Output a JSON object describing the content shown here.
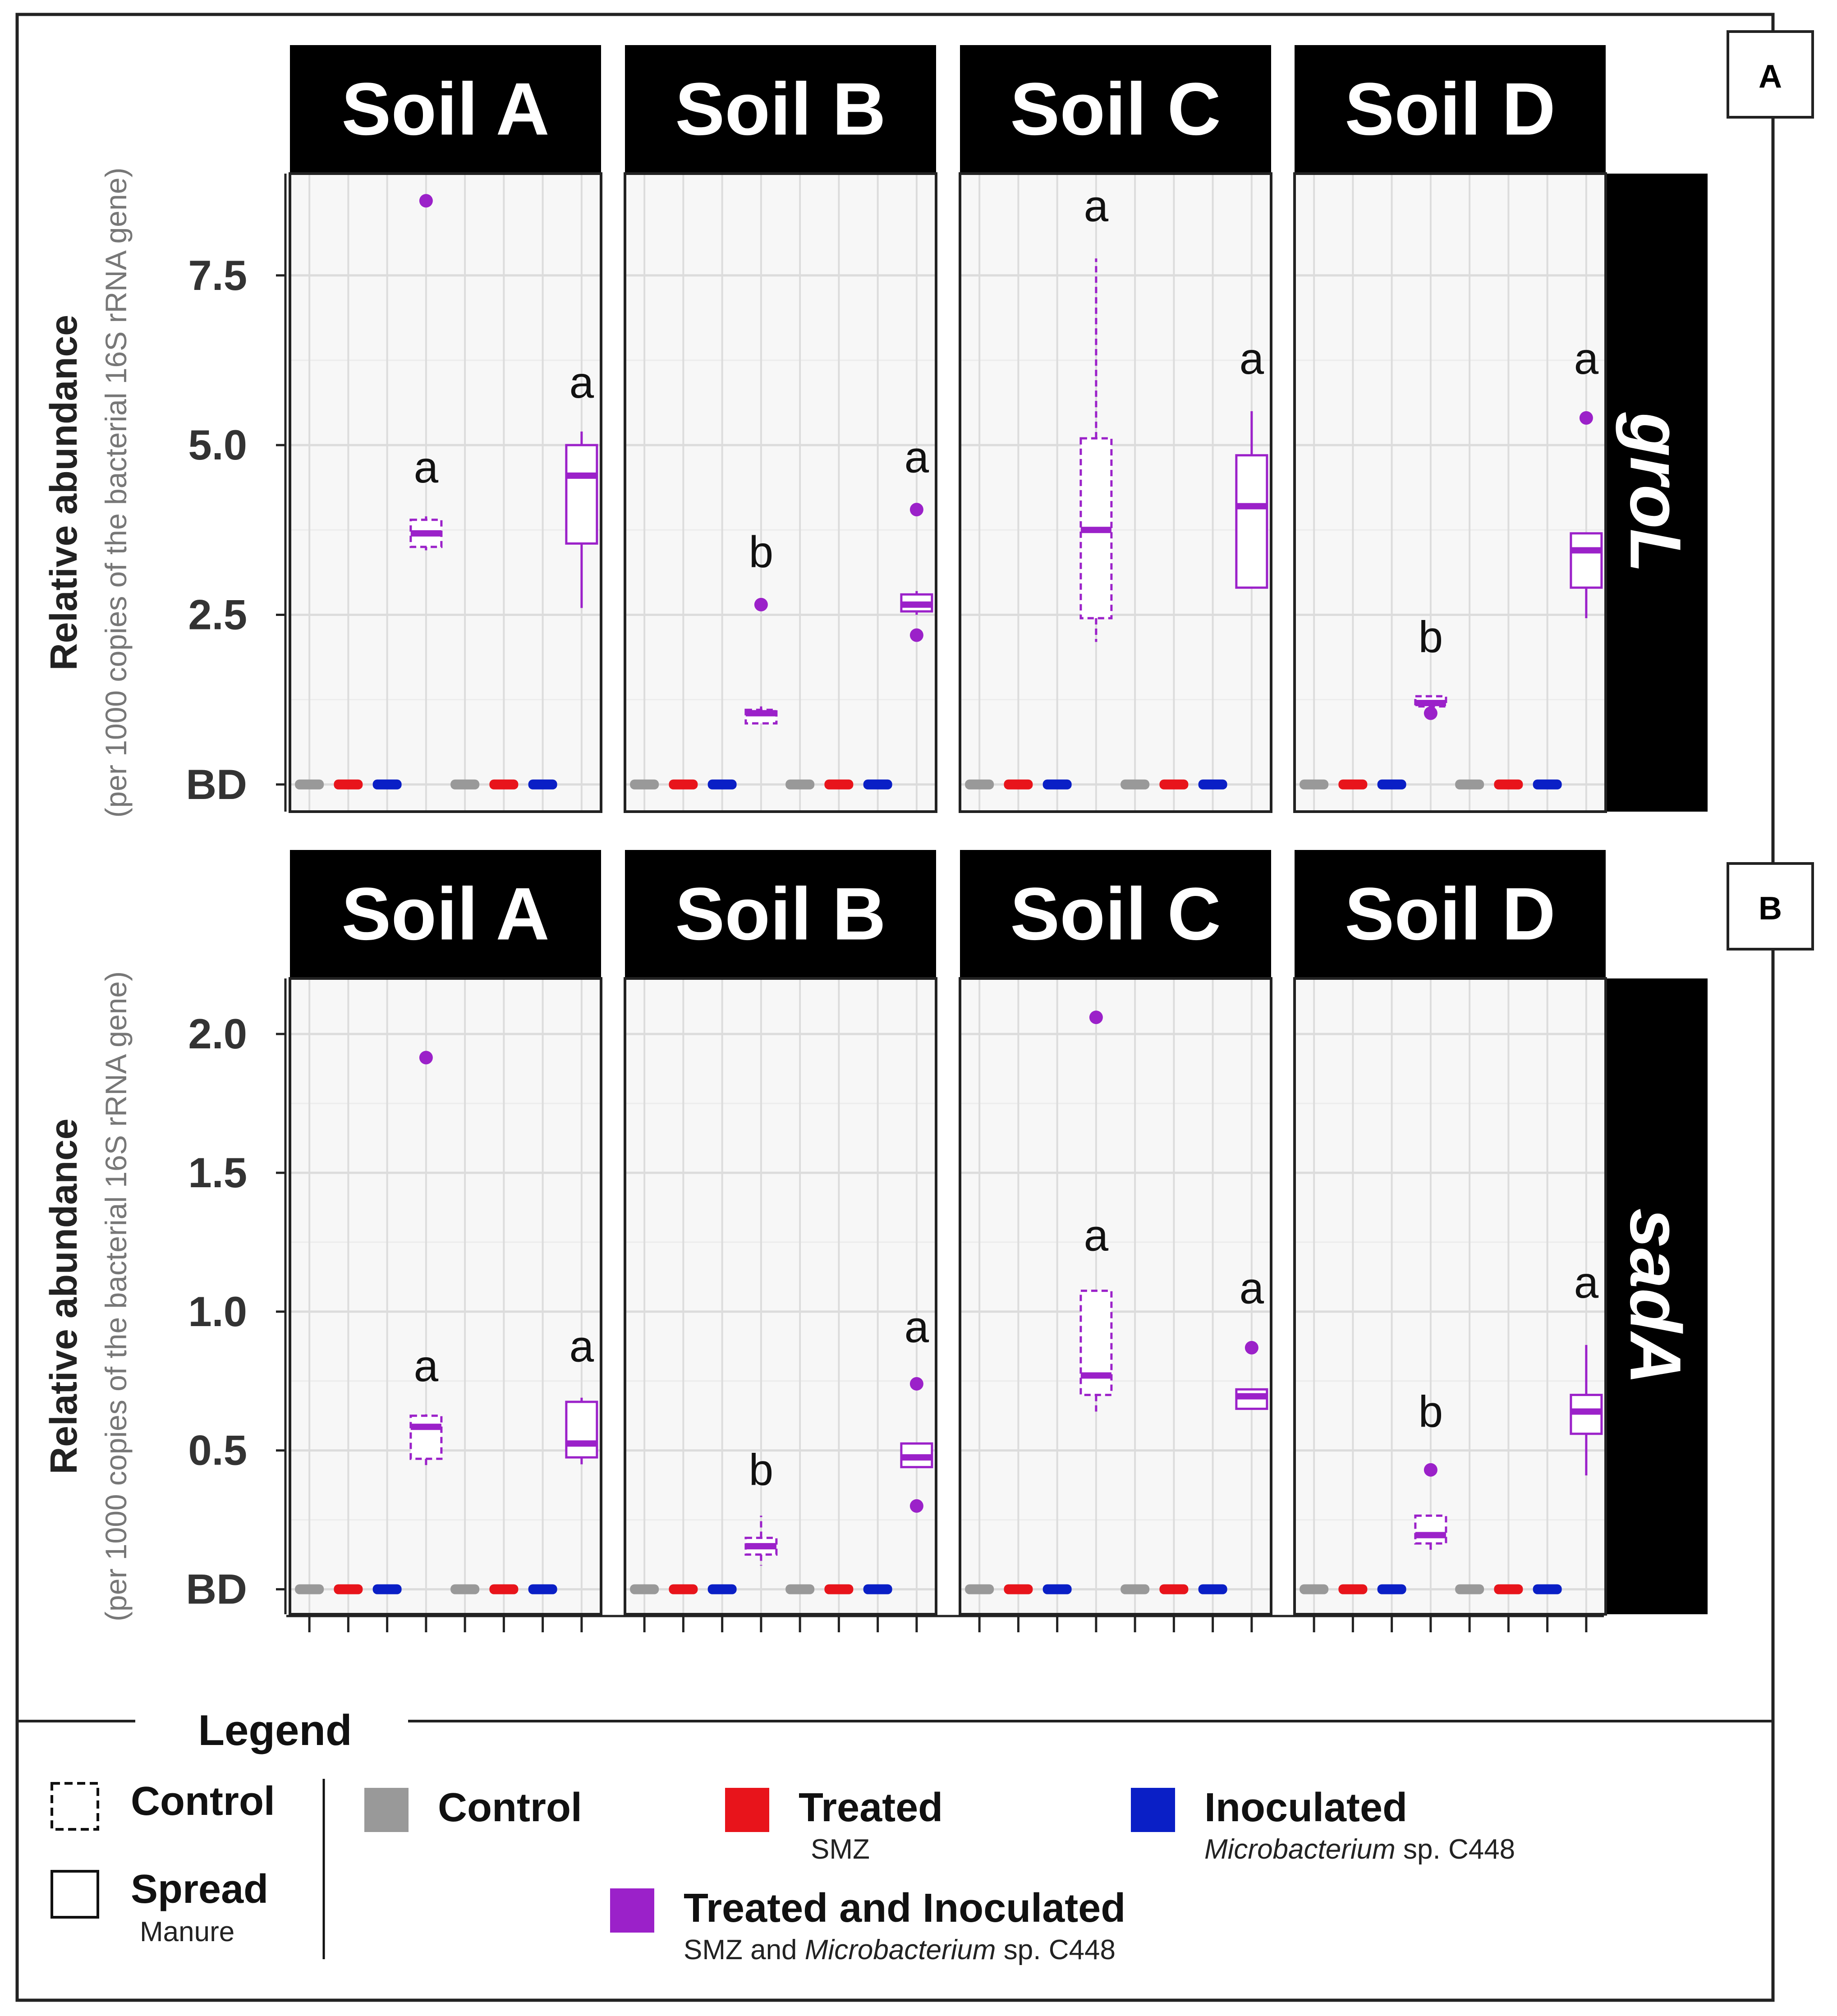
{
  "colors": {
    "control": "#999999",
    "treated": "#e8141b",
    "inoculated": "#0a1fc6",
    "treated_inoculated": "#9b21c9",
    "strip": "#000000",
    "panel_bg": "#f7f7f7",
    "grid": "#dcdcdc"
  },
  "chart_data": [
    {
      "type": "box",
      "panel_label": "A",
      "gene": "groL",
      "facets": [
        "Soil A",
        "Soil B",
        "Soil C",
        "Soil D"
      ],
      "ylabel": "Relative abundance",
      "ylabel_sub": "(per 1000 copies of the bacterial 16S rRNA gene)",
      "yticks": [
        {
          "value": 0,
          "label": "BD"
        },
        {
          "value": 2.5,
          "label": "2.5"
        },
        {
          "value": 5.0,
          "label": "5.0"
        },
        {
          "value": 7.5,
          "label": "7.5"
        }
      ],
      "ylim": [
        -0.4,
        9.0
      ],
      "groups": [
        "Control",
        "Treated",
        "Inoculated",
        "Treated and Inoculated",
        "Control",
        "Treated",
        "Inoculated",
        "Treated and Inoculated"
      ],
      "manure": [
        "Control",
        "Control",
        "Control",
        "Control",
        "Spread",
        "Spread",
        "Spread",
        "Spread"
      ],
      "boxes": [
        [
          {
            "pos": 4,
            "manure": "Control",
            "q1": 3.5,
            "median": 3.7,
            "q3": 3.9,
            "whisker_low": 3.45,
            "whisker_high": 3.95,
            "outliers": [
              8.6
            ],
            "letter": "a",
            "letter_y": 4.45
          },
          {
            "pos": 8,
            "manure": "Spread",
            "q1": 3.55,
            "median": 4.55,
            "q3": 5.0,
            "whisker_low": 2.6,
            "whisker_high": 5.2,
            "outliers": [],
            "letter": "a",
            "letter_y": 5.7
          }
        ],
        [
          {
            "pos": 4,
            "manure": "Control",
            "q1": 0.9,
            "median": 1.05,
            "q3": 1.1,
            "whisker_low": 0.9,
            "whisker_high": 1.15,
            "outliers": [
              2.65
            ],
            "letter": "b",
            "letter_y": 3.2
          },
          {
            "pos": 8,
            "manure": "Spread",
            "q1": 2.55,
            "median": 2.65,
            "q3": 2.8,
            "whisker_low": 2.5,
            "whisker_high": 2.85,
            "outliers": [
              4.05,
              2.2
            ],
            "letter": "a",
            "letter_y": 4.6
          }
        ],
        [
          {
            "pos": 4,
            "manure": "Control",
            "q1": 2.45,
            "median": 3.75,
            "q3": 5.1,
            "whisker_low": 2.1,
            "whisker_high": 7.75,
            "outliers": [],
            "letter": "a",
            "letter_y": 8.3
          },
          {
            "pos": 8,
            "manure": "Spread",
            "q1": 2.9,
            "median": 4.1,
            "q3": 4.85,
            "whisker_low": 2.9,
            "whisker_high": 5.5,
            "outliers": [],
            "letter": "a",
            "letter_y": 6.05
          }
        ],
        [
          {
            "pos": 4,
            "manure": "Control",
            "q1": 1.15,
            "median": 1.2,
            "q3": 1.3,
            "whisker_low": 1.1,
            "whisker_high": 1.3,
            "outliers": [
              1.05
            ],
            "letter": "b",
            "letter_y": 1.95
          },
          {
            "pos": 8,
            "manure": "Spread",
            "q1": 2.9,
            "median": 3.45,
            "q3": 3.7,
            "whisker_low": 2.45,
            "whisker_high": 3.7,
            "outliers": [
              5.4
            ],
            "letter": "a",
            "letter_y": 6.05
          }
        ]
      ]
    },
    {
      "type": "box",
      "panel_label": "B",
      "gene": "sadA",
      "facets": [
        "Soil A",
        "Soil B",
        "Soil C",
        "Soil D"
      ],
      "ylabel": "Relative abundance",
      "ylabel_sub": "(per 1000 copies of the bacterial 16S rRNA gene)",
      "yticks": [
        {
          "value": 0,
          "label": "BD"
        },
        {
          "value": 0.5,
          "label": "0.5"
        },
        {
          "value": 1.0,
          "label": "1.0"
        },
        {
          "value": 1.5,
          "label": "1.5"
        },
        {
          "value": 2.0,
          "label": "2.0"
        }
      ],
      "ylim": [
        -0.09,
        2.2
      ],
      "groups": [
        "Control",
        "Treated",
        "Inoculated",
        "Treated and Inoculated",
        "Control",
        "Treated",
        "Inoculated",
        "Treated and Inoculated"
      ],
      "manure": [
        "Control",
        "Control",
        "Control",
        "Control",
        "Spread",
        "Spread",
        "Spread",
        "Spread"
      ],
      "boxes": [
        [
          {
            "pos": 4,
            "manure": "Control",
            "q1": 0.47,
            "median": 0.585,
            "q3": 0.625,
            "whisker_low": 0.44,
            "whisker_high": 0.63,
            "outliers": [
              1.915
            ],
            "letter": "a",
            "letter_y": 0.75
          },
          {
            "pos": 8,
            "manure": "Spread",
            "q1": 0.475,
            "median": 0.525,
            "q3": 0.675,
            "whisker_low": 0.45,
            "whisker_high": 0.69,
            "outliers": [],
            "letter": "a",
            "letter_y": 0.82
          }
        ],
        [
          {
            "pos": 4,
            "manure": "Control",
            "q1": 0.125,
            "median": 0.155,
            "q3": 0.185,
            "whisker_low": 0.085,
            "whisker_high": 0.265,
            "outliers": [],
            "letter": "b",
            "letter_y": 0.375
          },
          {
            "pos": 8,
            "manure": "Spread",
            "q1": 0.44,
            "median": 0.475,
            "q3": 0.525,
            "whisker_low": 0.44,
            "whisker_high": 0.525,
            "outliers": [
              0.74,
              0.3
            ],
            "letter": "a",
            "letter_y": 0.89
          }
        ],
        [
          {
            "pos": 4,
            "manure": "Control",
            "q1": 0.7,
            "median": 0.77,
            "q3": 1.075,
            "whisker_low": 0.64,
            "whisker_high": 1.075,
            "outliers": [
              2.06
            ],
            "letter": "a",
            "letter_y": 1.22
          },
          {
            "pos": 8,
            "manure": "Spread",
            "q1": 0.65,
            "median": 0.695,
            "q3": 0.72,
            "whisker_low": 0.65,
            "whisker_high": 0.72,
            "outliers": [
              0.87
            ],
            "letter": "a",
            "letter_y": 1.03
          }
        ],
        [
          {
            "pos": 4,
            "manure": "Control",
            "q1": 0.165,
            "median": 0.195,
            "q3": 0.265,
            "whisker_low": 0.14,
            "whisker_high": 0.265,
            "outliers": [
              0.43
            ],
            "letter": "b",
            "letter_y": 0.585
          },
          {
            "pos": 8,
            "manure": "Spread",
            "q1": 0.56,
            "median": 0.64,
            "q3": 0.7,
            "whisker_low": 0.41,
            "whisker_high": 0.88,
            "outliers": [],
            "letter": "a",
            "letter_y": 1.05
          }
        ]
      ]
    }
  ],
  "legend": {
    "title": "Legend",
    "manure_items": [
      {
        "label": "Control",
        "sub": "",
        "style": "dashed"
      },
      {
        "label": "Spread",
        "sub": "Manure",
        "style": "solid"
      }
    ],
    "treatment_items": [
      {
        "label": "Control",
        "sub": "",
        "sub_italic": "",
        "sub_tail": "",
        "color_key": "control"
      },
      {
        "label": "Treated",
        "sub": "SMZ",
        "sub_italic": "",
        "sub_tail": "",
        "color_key": "treated"
      },
      {
        "label": "Inoculated",
        "sub": "",
        "sub_italic": "Microbacterium",
        "sub_tail": " sp. C448",
        "color_key": "inoculated"
      },
      {
        "label": "Treated and Inoculated",
        "sub": "SMZ  and ",
        "sub_italic": "Microbacterium",
        "sub_tail": " sp. C448",
        "color_key": "treated_inoculated"
      }
    ]
  }
}
